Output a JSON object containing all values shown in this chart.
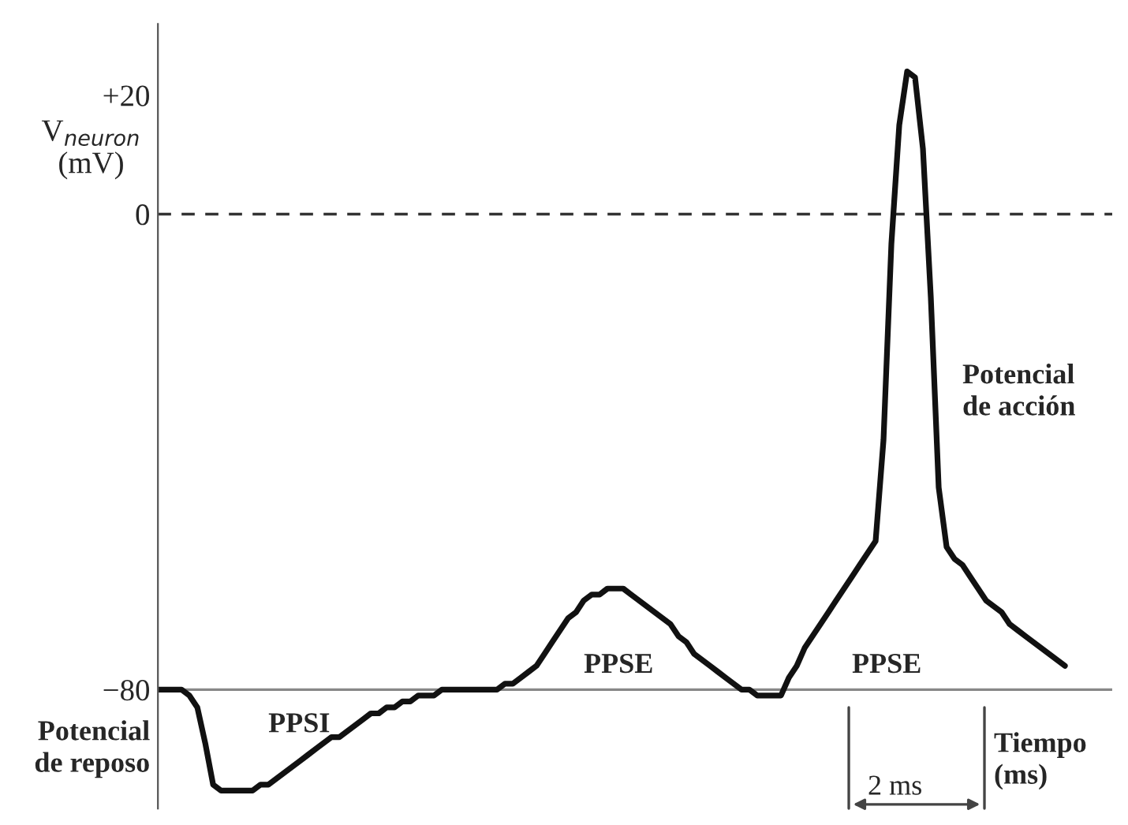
{
  "chart_data": {
    "type": "line",
    "ylabel": "V$_{neuron}$\n(mV)",
    "categories": [
      null,
      null,
      null,
      null,
      null,
      null,
      null,
      null,
      null,
      null,
      null,
      null,
      null,
      null,
      null,
      null,
      null,
      null,
      null,
      null,
      null,
      null,
      null,
      null,
      null,
      null,
      null,
      null,
      null,
      null,
      null,
      null,
      null,
      null,
      null,
      null,
      null,
      null,
      null,
      null,
      null,
      null,
      null,
      null,
      null,
      null,
      null,
      null,
      null,
      null,
      null,
      null,
      null,
      null,
      null,
      null,
      null,
      null,
      null,
      null,
      null,
      null,
      null,
      null,
      null,
      null,
      null,
      null,
      null,
      null,
      null,
      null,
      null,
      null,
      null,
      null,
      null,
      null,
      null,
      null,
      null,
      null,
      null,
      null,
      null,
      null,
      null,
      null,
      null,
      null,
      null,
      null,
      null,
      null,
      null,
      null,
      null,
      null,
      null,
      null,
      null,
      null,
      null,
      null,
      null,
      null,
      null,
      null,
      null,
      null,
      null,
      null,
      null,
      null,
      null,
      null
    ],
    "series": [
      {
        "color": "#111111",
        "values": [
          -80,
          -80,
          -80,
          -80,
          -81,
          -83,
          -89,
          -96,
          -97,
          -97,
          -97,
          -97,
          -97,
          -96,
          -96,
          -95,
          -94,
          -93,
          -92,
          -91,
          -90,
          -89,
          -88,
          -88,
          -87,
          -86,
          -85,
          -84,
          -84,
          -83,
          -83,
          -82,
          -82,
          -81,
          -81,
          -81,
          -80,
          -80,
          -80,
          -80,
          -80,
          -80,
          -80,
          -80,
          -79,
          -79,
          -78,
          -77,
          -76,
          -74,
          -72,
          -70,
          -68,
          -67,
          -65,
          -64,
          -64,
          -63,
          -63,
          -63,
          -64,
          -65,
          -66,
          -67,
          -68,
          -69,
          -71,
          -72,
          -74,
          -75,
          -76,
          -77,
          -78,
          -79,
          -80,
          -80,
          -81,
          -81,
          -81,
          -81,
          -78,
          -76,
          -73,
          -71,
          -69,
          -67,
          -65,
          -63,
          -61,
          -59,
          -57,
          -55,
          -38,
          -5,
          15,
          24,
          23,
          11,
          -14,
          -46,
          -56,
          -58,
          -59,
          -61,
          -63,
          -65,
          -66,
          -67,
          -69,
          -70,
          -71,
          -72,
          -73,
          -74,
          -75,
          -76
        ]
      }
    ],
    "ylim": [
      -100,
      32
    ],
    "yticks": [
      {
        "value": -80,
        "label": "−80"
      },
      0,
      {
        "value": 20,
        "label": "+20"
      }
    ],
    "tick_labels": "y",
    "line_style": "solid",
    "marker": "none",
    "grid": false,
    "ref_lines": [
      {
        "axis": "y",
        "value": 0,
        "line_style": "dashed",
        "color": "#333333"
      },
      {
        "axis": "y",
        "value": -80,
        "line_style": "solid",
        "color": "#888888"
      }
    ],
    "annotations": [
      "Potencial\nde reposo",
      "PPSI",
      "PPSE",
      "PPSE",
      "Potencial\nde acción",
      "2 ms",
      "Tiempo\n(ms)"
    ]
  }
}
